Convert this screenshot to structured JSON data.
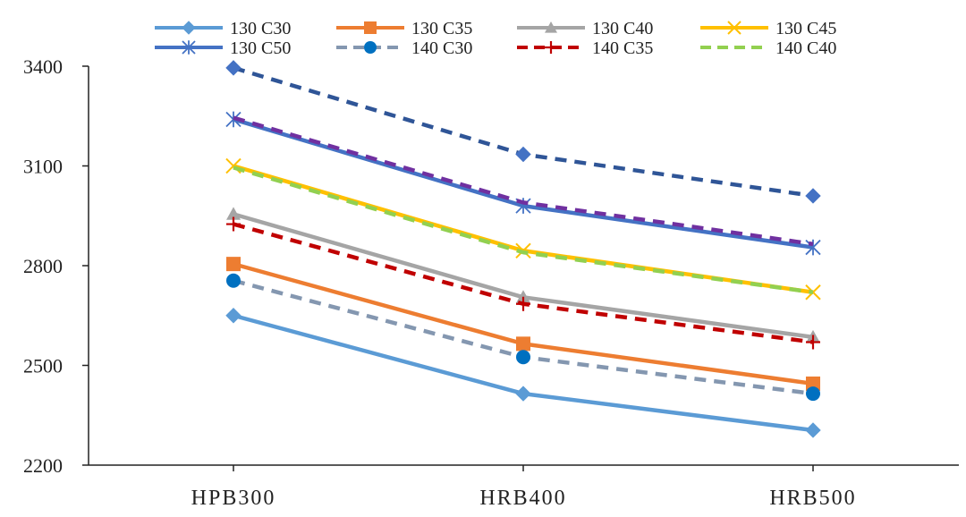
{
  "chart_data": {
    "type": "line",
    "title": "",
    "xlabel": "",
    "ylabel": "",
    "categories": [
      "HPB300",
      "HRB400",
      "HRB500"
    ],
    "ylim": [
      2200,
      3400
    ],
    "yticks": [
      2200,
      2500,
      2800,
      3100,
      3400
    ],
    "grid": false,
    "legend_position": "top",
    "series": [
      {
        "name": "130 C30",
        "values": [
          2650,
          2415,
          2305
        ],
        "color": "#5B9BD5",
        "marker": "diamond",
        "dash": "solid"
      },
      {
        "name": "130 C35",
        "values": [
          2805,
          2565,
          2445
        ],
        "color": "#ED7D31",
        "marker": "square",
        "dash": "solid"
      },
      {
        "name": "130 C40",
        "values": [
          2955,
          2705,
          2585
        ],
        "color": "#A5A5A5",
        "marker": "triangle",
        "dash": "solid"
      },
      {
        "name": "130 C45",
        "values": [
          3100,
          2845,
          2720
        ],
        "color": "#FFC000",
        "marker": "x",
        "dash": "solid"
      },
      {
        "name": "130 C50",
        "values": [
          3240,
          2980,
          2855
        ],
        "color": "#4472C4",
        "marker": "star",
        "dash": "solid"
      },
      {
        "name": "140 C30",
        "values": [
          2755,
          2525,
          2415
        ],
        "color": "#8497B0",
        "marker": "circle",
        "marker_color": "#0070C0",
        "dash": "dash"
      },
      {
        "name": "140 C35",
        "values": [
          2925,
          2685,
          2570
        ],
        "color": "#C00000",
        "marker": "plus",
        "dash": "dash"
      },
      {
        "name": "140 C40",
        "values": [
          3095,
          2840,
          2720
        ],
        "color": "#92D050",
        "marker": "none",
        "dash": "dash"
      },
      {
        "name": "",
        "values": [
          3245,
          2990,
          2865
        ],
        "color": "#7030A0",
        "marker": "none",
        "dash": "dash"
      },
      {
        "name": "",
        "values": [
          3395,
          3135,
          3010
        ],
        "color": "#2F5597",
        "marker": "diamond",
        "marker_color": "#4472C4",
        "dash": "dash"
      }
    ]
  }
}
